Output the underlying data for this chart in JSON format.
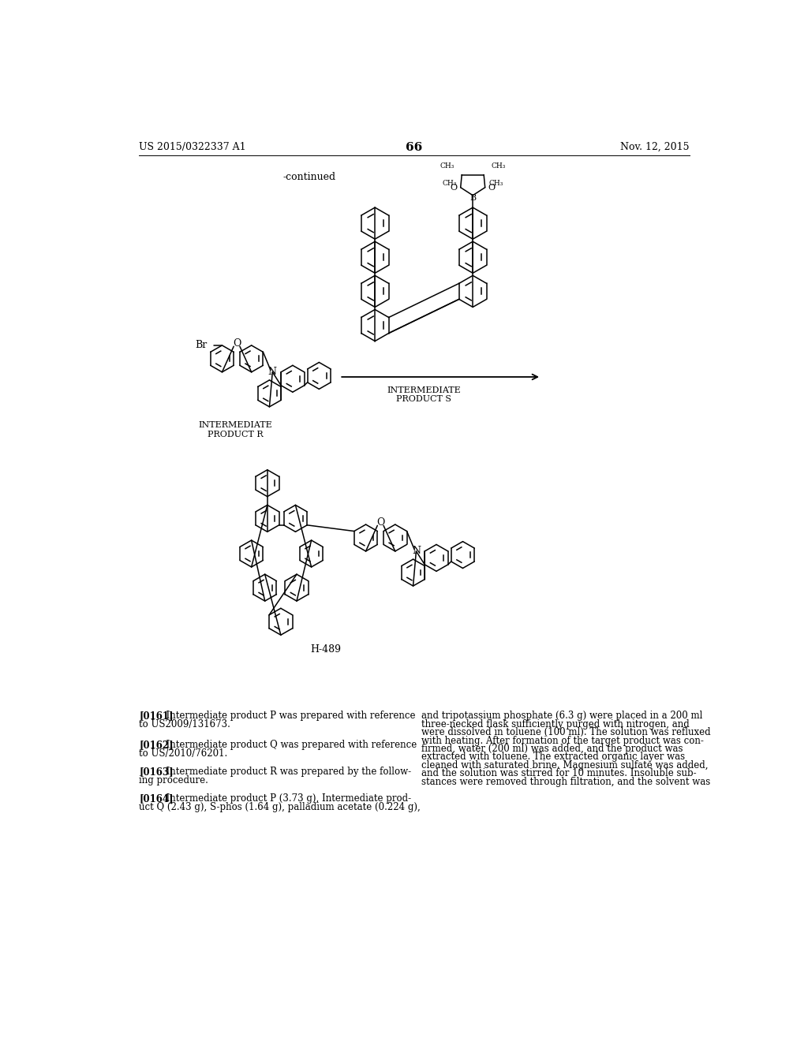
{
  "page_number": "66",
  "header_left": "US 2015/0322337 A1",
  "header_right": "Nov. 12, 2015",
  "continued_text": "-continued",
  "background_color": "#ffffff",
  "text_color": "#000000",
  "label_R": "INTERMEDIATE\nPRODUCT R",
  "label_S": "INTERMEDIATE\nPRODUCT S",
  "label_product": "H-489",
  "para_left": [
    {
      "tag": "[0161]",
      "text": "  Intermediate product P was prepared with reference\nto US2009/131673."
    },
    {
      "tag": "[0162]",
      "text": "  Intermediate product Q was prepared with reference\nto US/2010/76201."
    },
    {
      "tag": "[0163]",
      "text": "  Intermediate product R was prepared by the follow-\ning procedure."
    },
    {
      "tag": "[0164]",
      "text": "  Intermediate product P (3.73 g), Intermediate prod-\nuct Q (2.43 g), S-phos (1.64 g), palladium acetate (0.224 g),"
    }
  ],
  "para_right": "and tripotassium phosphate (6.3 g) were placed in a 200 ml\nthree-necked flask sufficiently purged with nitrogen, and\nwere dissolved in toluene (100 ml). The solution was refluxed\nwith heating. After formation of the target product was con-\nfirmed, water (200 ml) was added, and the product was\nextracted with toluene. The extracted organic layer was\ncleaned with saturated brine. Magnesium sulfate was added,\nand the solution was stirred for 10 minutes. Insoluble sub-\nstances were removed through filtration, and the solvent was"
}
